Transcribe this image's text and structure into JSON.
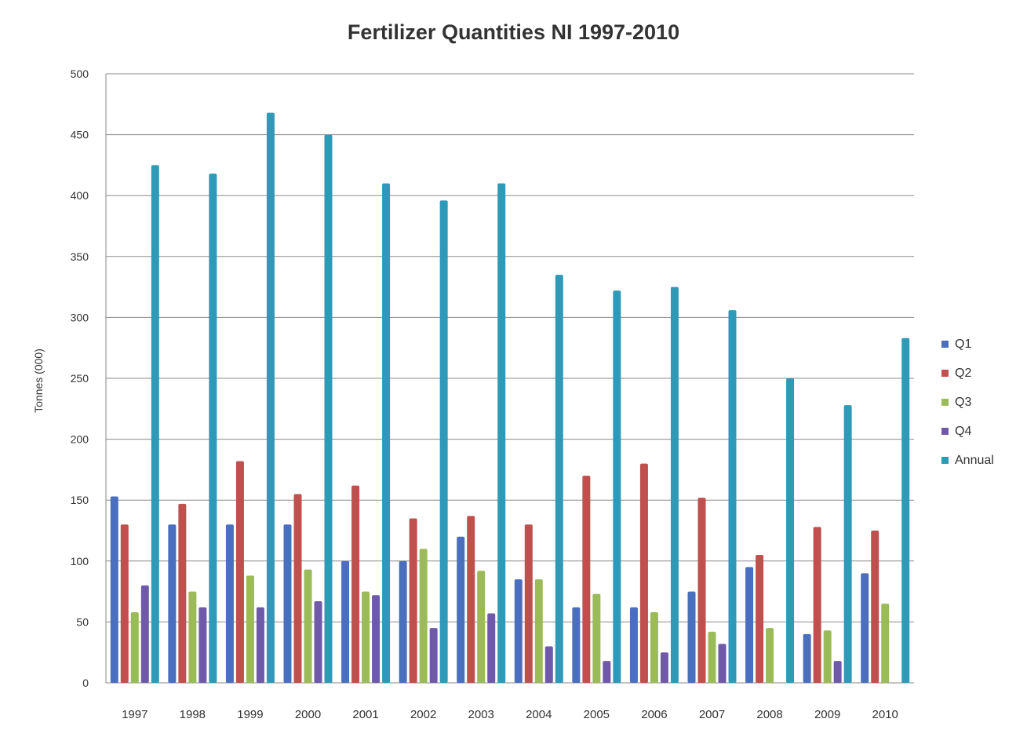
{
  "chart_data": {
    "type": "bar",
    "title": "Fertilizer Quantities NI 1997-2010",
    "xlabel": "",
    "ylabel": "Tonnes (000)",
    "ylim": [
      0,
      500
    ],
    "yticks": [
      0,
      50,
      100,
      150,
      200,
      250,
      300,
      350,
      400,
      450,
      500
    ],
    "grid": true,
    "legend_position": "right",
    "categories": [
      "1997",
      "1998",
      "1999",
      "2000",
      "2001",
      "2002",
      "2003",
      "2004",
      "2005",
      "2006",
      "2007",
      "2008",
      "2009",
      "2010"
    ],
    "series": [
      {
        "name": "Q1",
        "color": "#4a6fbf",
        "values": [
          153,
          130,
          130,
          130,
          100,
          100,
          120,
          85,
          62,
          62,
          75,
          95,
          40,
          90
        ]
      },
      {
        "name": "Q2",
        "color": "#c0504d",
        "values": [
          130,
          147,
          182,
          155,
          162,
          135,
          137,
          130,
          170,
          180,
          152,
          105,
          128,
          125
        ]
      },
      {
        "name": "Q3",
        "color": "#9bbb59",
        "values": [
          58,
          75,
          88,
          93,
          75,
          110,
          92,
          85,
          73,
          58,
          42,
          45,
          43,
          65
        ]
      },
      {
        "name": "Q4",
        "color": "#6e5aa8",
        "values": [
          80,
          62,
          62,
          67,
          72,
          45,
          57,
          30,
          18,
          25,
          32,
          0,
          18,
          0
        ]
      },
      {
        "name": "Annual",
        "color": "#2e9ab8",
        "values": [
          425,
          418,
          468,
          450,
          410,
          396,
          410,
          335,
          322,
          325,
          306,
          250,
          228,
          283
        ]
      }
    ]
  }
}
